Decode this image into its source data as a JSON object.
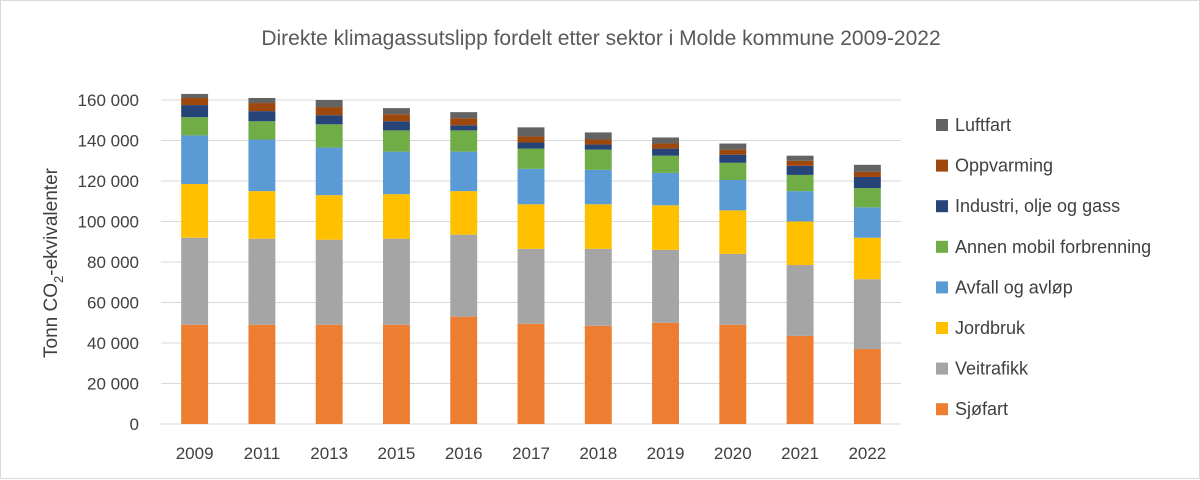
{
  "chart_data": {
    "type": "bar",
    "stacked": true,
    "title": "Direkte klimagassutslipp fordelt etter sektor i Molde kommune 2009-2022",
    "xlabel": "",
    "ylabel": "Tonn CO₂-ekvivalenter",
    "ylabel_parts": {
      "before": "Tonn CO",
      "sub": "2",
      "after": "-ekvivalenter"
    },
    "ylim": [
      0,
      160000
    ],
    "yticks": [
      0,
      20000,
      40000,
      60000,
      80000,
      100000,
      120000,
      140000,
      160000
    ],
    "ytick_labels": [
      "0",
      "20 000",
      "40 000",
      "60 000",
      "80 000",
      "100 000",
      "120 000",
      "140 000",
      "160 000"
    ],
    "grid": true,
    "legend_position": "right",
    "categories": [
      "2009",
      "2011",
      "2013",
      "2015",
      "2016",
      "2017",
      "2018",
      "2019",
      "2020",
      "2021",
      "2022"
    ],
    "series": [
      {
        "name": "Sjøfart",
        "color": "#ED7D31",
        "values": [
          49000,
          49000,
          49000,
          49000,
          53000,
          49500,
          48500,
          50000,
          49000,
          43500,
          37000
        ]
      },
      {
        "name": "Veitrafikk",
        "color": "#A5A5A5",
        "values": [
          43000,
          42500,
          42000,
          42500,
          40500,
          37000,
          38000,
          36000,
          35000,
          35000,
          34500
        ]
      },
      {
        "name": "Jordbruk",
        "color": "#FFC000",
        "values": [
          26500,
          23500,
          22000,
          22000,
          21500,
          22000,
          22000,
          22000,
          21500,
          21500,
          20500
        ]
      },
      {
        "name": "Avfall og avløp",
        "color": "#5B9BD5",
        "values": [
          24000,
          25500,
          23500,
          21000,
          19500,
          17500,
          17000,
          16000,
          15000,
          15000,
          15000
        ]
      },
      {
        "name": "Annen mobil forbrenning",
        "color": "#70AD47",
        "values": [
          9000,
          9000,
          11500,
          10500,
          10500,
          10000,
          10000,
          8500,
          8500,
          8000,
          9500
        ]
      },
      {
        "name": "Industri, olje og gass",
        "color": "#264478",
        "values": [
          6000,
          5000,
          4500,
          4500,
          2500,
          3000,
          2500,
          3500,
          4000,
          4500,
          5500
        ]
      },
      {
        "name": "Oppvarming",
        "color": "#9E480E",
        "values": [
          3500,
          4000,
          4000,
          3500,
          3500,
          3000,
          2500,
          2500,
          2500,
          2500,
          2500
        ]
      },
      {
        "name": "Luftfart",
        "color": "#636363",
        "values": [
          2000,
          2500,
          3500,
          3000,
          3000,
          4500,
          3500,
          3000,
          3000,
          2500,
          3500
        ]
      }
    ]
  }
}
